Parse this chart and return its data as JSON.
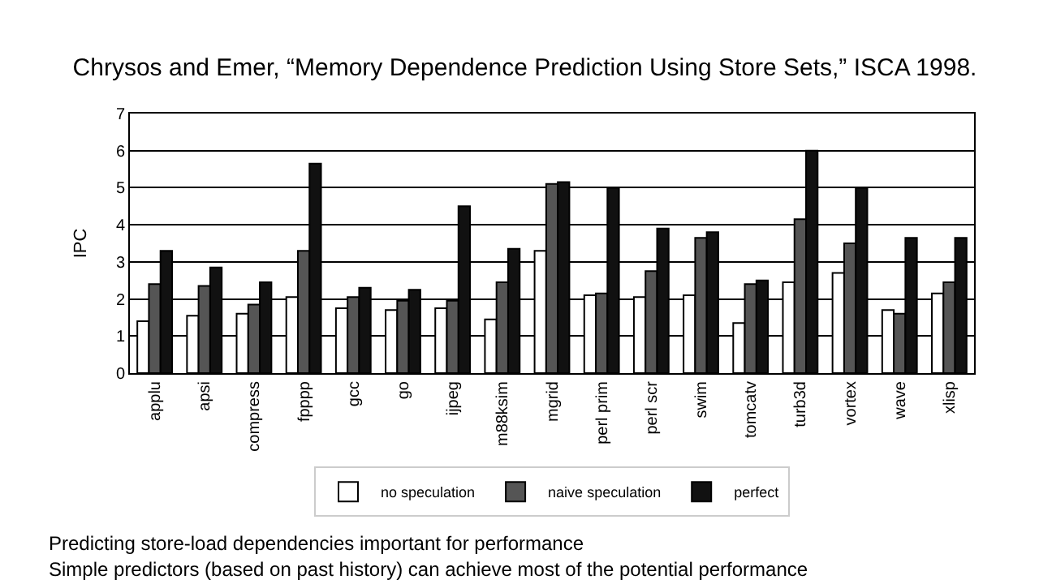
{
  "chart_data": {
    "type": "bar",
    "title": "Chrysos and Emer, “Memory Dependence Prediction Using Store Sets,” ISCA 1998.",
    "ylabel": "IPC",
    "categories": [
      "applu",
      "apsi",
      "compress",
      "fpppp",
      "gcc",
      "go",
      "ijpeg",
      "m88ksim",
      "mgrid",
      "perl prim",
      "perl scr",
      "swim",
      "tomcatv",
      "turb3d",
      "vortex",
      "wave",
      "xlisp"
    ],
    "series": [
      {
        "name": "no speculation",
        "color": "#ffffff",
        "values": [
          1.4,
          1.55,
          1.6,
          2.05,
          1.75,
          1.7,
          1.75,
          1.45,
          3.3,
          2.1,
          2.05,
          2.1,
          1.35,
          2.45,
          2.7,
          1.7,
          2.15
        ]
      },
      {
        "name": "naive speculation",
        "color": "#555555",
        "values": [
          2.4,
          2.35,
          1.85,
          3.3,
          2.05,
          1.95,
          1.95,
          2.45,
          5.1,
          2.15,
          2.75,
          3.65,
          2.4,
          4.15,
          3.5,
          1.6,
          2.45
        ]
      },
      {
        "name": "perfect",
        "color": "#111111",
        "values": [
          3.3,
          2.85,
          2.45,
          5.65,
          2.3,
          2.25,
          4.5,
          3.35,
          5.15,
          5.0,
          3.9,
          3.8,
          2.5,
          6.0,
          5.0,
          3.65,
          3.65
        ]
      }
    ],
    "ylim": [
      0,
      7
    ],
    "yticks": [
      0,
      1,
      2,
      3,
      4,
      5,
      6,
      7
    ],
    "grid": "y",
    "legend": "bottom",
    "annotations": [
      "Predicting store-load dependencies important for performance",
      "Simple predictors (based on past history) can achieve most of the potential performance"
    ]
  }
}
